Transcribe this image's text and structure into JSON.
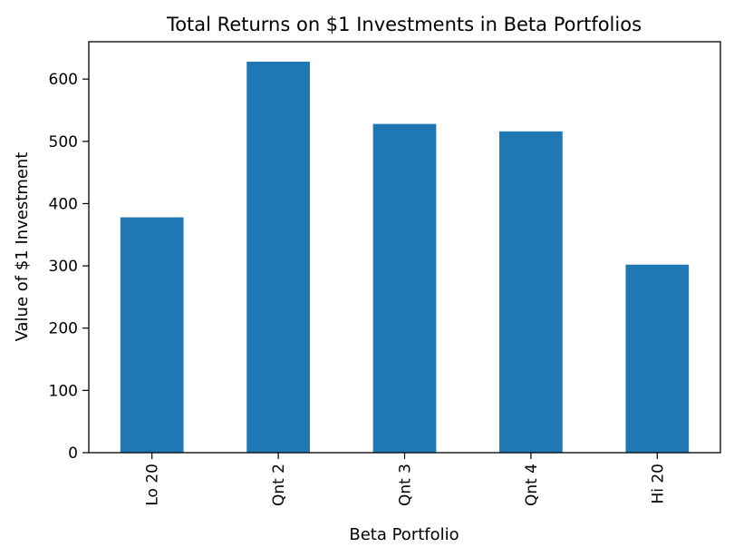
{
  "chart_data": {
    "type": "bar",
    "title": "Total Returns on $1 Investments in Beta Portfolios",
    "xlabel": "Beta Portfolio",
    "ylabel": "Value of $1 Investment",
    "categories": [
      "Lo 20",
      "Qnt 2",
      "Qnt 3",
      "Qnt 4",
      "Hi 20"
    ],
    "values": [
      378,
      628,
      528,
      516,
      302
    ],
    "ylim": [
      0,
      660
    ],
    "yticks": [
      0,
      100,
      200,
      300,
      400,
      500,
      600
    ],
    "grid": false,
    "bar_color": "#1f77b4"
  }
}
